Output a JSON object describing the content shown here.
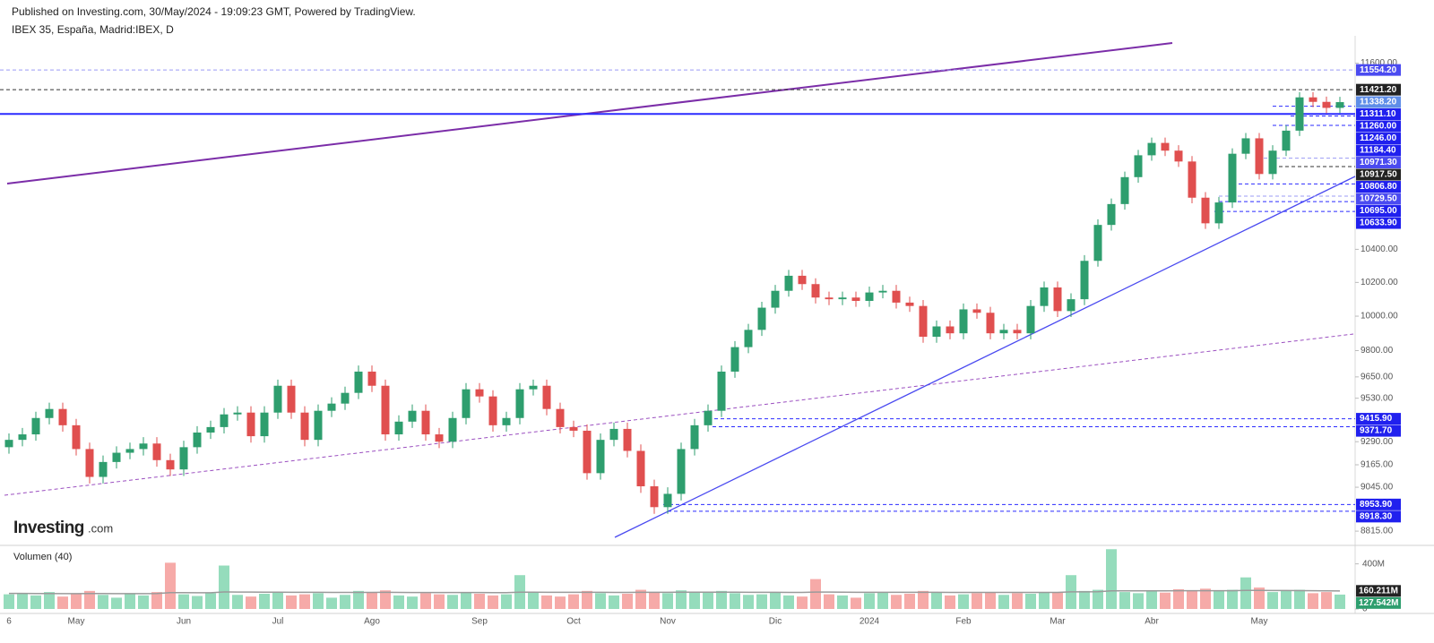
{
  "header": {
    "published": "Published on Investing.com, 30/May/2024 - 19:09:23 GMT, Powered by TradingView.",
    "symbol": "IBEX 35, España, Madrid:IBEX, D"
  },
  "logo": {
    "name": "Investing",
    "suffix": ".com"
  },
  "chart_data": {
    "type": "candlestick",
    "log_scale": true,
    "up_color": "#2e9e6e",
    "down_color": "#e04f4f",
    "volume_up_color": "#95dcbc",
    "volume_down_color": "#f6aaa8",
    "ma_color": "#9a9a9a",
    "categories": [
      "6",
      null,
      null,
      null,
      null,
      "May",
      null,
      null,
      null,
      null,
      null,
      null,
      null,
      "Jun",
      null,
      null,
      null,
      null,
      null,
      null,
      "Jul",
      null,
      null,
      null,
      null,
      null,
      null,
      "Ago",
      null,
      null,
      null,
      null,
      null,
      null,
      null,
      "Sep",
      null,
      null,
      null,
      null,
      null,
      null,
      "Oct",
      null,
      null,
      null,
      null,
      null,
      null,
      "Nov",
      null,
      null,
      null,
      null,
      null,
      null,
      null,
      "Dic",
      null,
      null,
      null,
      null,
      null,
      null,
      "2024",
      null,
      null,
      null,
      null,
      null,
      null,
      "Feb",
      null,
      null,
      null,
      null,
      null,
      null,
      "Mar",
      null,
      null,
      null,
      null,
      null,
      null,
      "Abr",
      null,
      null,
      null,
      null,
      null,
      null,
      null,
      "May",
      null,
      null,
      null,
      null,
      null,
      null
    ],
    "ohlc": [
      [
        9260,
        9335,
        9225,
        9300
      ],
      [
        9300,
        9365,
        9265,
        9330
      ],
      [
        9330,
        9455,
        9295,
        9420
      ],
      [
        9420,
        9505,
        9385,
        9470
      ],
      [
        9470,
        9505,
        9345,
        9380
      ],
      [
        9380,
        9415,
        9215,
        9250
      ],
      [
        9250,
        9285,
        9065,
        9100
      ],
      [
        9100,
        9215,
        9065,
        9180
      ],
      [
        9180,
        9265,
        9145,
        9230
      ],
      [
        9230,
        9285,
        9195,
        9250
      ],
      [
        9250,
        9315,
        9215,
        9280
      ],
      [
        9280,
        9315,
        9155,
        9190
      ],
      [
        9190,
        9225,
        9105,
        9140
      ],
      [
        9140,
        9295,
        9105,
        9260
      ],
      [
        9260,
        9375,
        9225,
        9340
      ],
      [
        9340,
        9405,
        9305,
        9370
      ],
      [
        9370,
        9475,
        9335,
        9440
      ],
      [
        9440,
        9485,
        9405,
        9450
      ],
      [
        9450,
        9485,
        9285,
        9320
      ],
      [
        9320,
        9485,
        9285,
        9450
      ],
      [
        9450,
        9635,
        9415,
        9600
      ],
      [
        9600,
        9635,
        9415,
        9450
      ],
      [
        9450,
        9485,
        9265,
        9300
      ],
      [
        9300,
        9495,
        9265,
        9460
      ],
      [
        9460,
        9535,
        9425,
        9500
      ],
      [
        9500,
        9595,
        9465,
        9560
      ],
      [
        9560,
        9715,
        9525,
        9680
      ],
      [
        9680,
        9715,
        9565,
        9600
      ],
      [
        9600,
        9635,
        9295,
        9330
      ],
      [
        9330,
        9435,
        9295,
        9400
      ],
      [
        9400,
        9495,
        9365,
        9460
      ],
      [
        9460,
        9495,
        9295,
        9330
      ],
      [
        9330,
        9365,
        9255,
        9290
      ],
      [
        9290,
        9455,
        9255,
        9420
      ],
      [
        9420,
        9615,
        9385,
        9580
      ],
      [
        9580,
        9615,
        9505,
        9540
      ],
      [
        9540,
        9575,
        9345,
        9380
      ],
      [
        9380,
        9455,
        9345,
        9420
      ],
      [
        9420,
        9615,
        9385,
        9580
      ],
      [
        9580,
        9635,
        9545,
        9600
      ],
      [
        9600,
        9635,
        9435,
        9470
      ],
      [
        9470,
        9505,
        9335,
        9370
      ],
      [
        9370,
        9405,
        9315,
        9350
      ],
      [
        9350,
        9385,
        9085,
        9120
      ],
      [
        9120,
        9335,
        9085,
        9300
      ],
      [
        9300,
        9395,
        9265,
        9360
      ],
      [
        9360,
        9395,
        9205,
        9240
      ],
      [
        9240,
        9275,
        9015,
        9050
      ],
      [
        9050,
        9085,
        8905,
        8940
      ],
      [
        8940,
        9045,
        8905,
        9010
      ],
      [
        9010,
        9285,
        8975,
        9250
      ],
      [
        9250,
        9415,
        9215,
        9380
      ],
      [
        9380,
        9495,
        9345,
        9460
      ],
      [
        9460,
        9715,
        9425,
        9680
      ],
      [
        9680,
        9855,
        9645,
        9820
      ],
      [
        9820,
        9955,
        9785,
        9920
      ],
      [
        9920,
        10085,
        9885,
        10050
      ],
      [
        10050,
        10185,
        10015,
        10150
      ],
      [
        10150,
        10275,
        10115,
        10240
      ],
      [
        10240,
        10275,
        10155,
        10190
      ],
      [
        10190,
        10225,
        10075,
        10110
      ],
      [
        10110,
        10145,
        10065,
        10100
      ],
      [
        10100,
        10145,
        10065,
        10110
      ],
      [
        10110,
        10145,
        10055,
        10090
      ],
      [
        10090,
        10175,
        10055,
        10140
      ],
      [
        10140,
        10185,
        10105,
        10150
      ],
      [
        10150,
        10185,
        10045,
        10080
      ],
      [
        10080,
        10115,
        10025,
        10060
      ],
      [
        10060,
        10095,
        9845,
        9880
      ],
      [
        9880,
        9975,
        9845,
        9940
      ],
      [
        9940,
        9975,
        9865,
        9900
      ],
      [
        9900,
        10075,
        9865,
        10040
      ],
      [
        10040,
        10075,
        9985,
        10020
      ],
      [
        10020,
        10055,
        9865,
        9900
      ],
      [
        9900,
        9955,
        9865,
        9920
      ],
      [
        9920,
        9955,
        9865,
        9900
      ],
      [
        9900,
        10095,
        9865,
        10060
      ],
      [
        10060,
        10205,
        10025,
        10170
      ],
      [
        10170,
        10205,
        9995,
        10030
      ],
      [
        10030,
        10135,
        9995,
        10100
      ],
      [
        10100,
        10365,
        10065,
        10330
      ],
      [
        10330,
        10585,
        10295,
        10550
      ],
      [
        10550,
        10715,
        10515,
        10680
      ],
      [
        10680,
        10885,
        10645,
        10850
      ],
      [
        10850,
        11025,
        10815,
        10990
      ],
      [
        10990,
        11105,
        10955,
        11070
      ],
      [
        11070,
        11105,
        10985,
        11020
      ],
      [
        11020,
        11055,
        10915,
        10950
      ],
      [
        10950,
        10985,
        10685,
        10720
      ],
      [
        10720,
        10755,
        10525,
        10560
      ],
      [
        10560,
        10725,
        10525,
        10690
      ],
      [
        10690,
        11035,
        10655,
        11000
      ],
      [
        11000,
        11135,
        10965,
        11100
      ],
      [
        11100,
        11135,
        10835,
        10870
      ],
      [
        10870,
        11055,
        10835,
        11020
      ],
      [
        11020,
        11185,
        10985,
        11150
      ],
      [
        11150,
        11405,
        11115,
        11370
      ],
      [
        11370,
        11405,
        11305,
        11340
      ],
      [
        11340,
        11375,
        11265,
        11300
      ],
      [
        11300,
        11373.2,
        11265,
        11338.2
      ]
    ],
    "volume": [
      130,
      140,
      120,
      150,
      110,
      135,
      160,
      125,
      100,
      140,
      120,
      150,
      410,
      130,
      115,
      140,
      385,
      125,
      110,
      135,
      150,
      120,
      130,
      140,
      100,
      125,
      160,
      150,
      165,
      120,
      110,
      140,
      130,
      125,
      150,
      135,
      120,
      130,
      300,
      145,
      120,
      110,
      130,
      160,
      140,
      120,
      135,
      170,
      150,
      140,
      165,
      150,
      145,
      160,
      140,
      125,
      130,
      150,
      120,
      110,
      265,
      130,
      120,
      100,
      140,
      150,
      125,
      135,
      160,
      145,
      120,
      130,
      140,
      150,
      125,
      140,
      135,
      150,
      145,
      300,
      160,
      170,
      530,
      150,
      140,
      160,
      145,
      175,
      165,
      180,
      160,
      170,
      280,
      190,
      150,
      165,
      170,
      140,
      150,
      127.542
    ],
    "volume_ma": [
      138,
      138,
      137,
      137,
      136,
      136,
      137,
      137,
      136,
      136,
      136,
      137,
      145,
      145,
      144,
      144,
      151,
      150,
      150,
      149,
      149,
      148,
      148,
      148,
      147,
      147,
      147,
      147,
      148,
      147,
      146,
      146,
      146,
      146,
      146,
      146,
      145,
      145,
      149,
      149,
      148,
      148,
      148,
      148,
      148,
      147,
      147,
      148,
      148,
      148,
      149,
      149,
      149,
      149,
      149,
      148,
      148,
      148,
      147,
      147,
      150,
      150,
      149,
      148,
      148,
      148,
      148,
      148,
      148,
      148,
      147,
      147,
      147,
      147,
      147,
      147,
      147,
      147,
      147,
      152,
      152,
      153,
      161,
      161,
      161,
      161,
      161,
      162,
      162,
      162,
      162,
      162,
      165,
      165,
      164,
      164,
      163,
      162,
      161,
      160.211
    ],
    "price_label": "11338.20",
    "volume_ma_label": "160.211M",
    "volume_label": "127.542M",
    "volume_title": "Volumen (40)",
    "ylim": [
      8760,
      11788
    ],
    "yticks": [
      {
        "value": 8815,
        "label": "8815.00"
      },
      {
        "value": 9045,
        "label": "9045.00"
      },
      {
        "value": 9165,
        "label": "9165.00"
      },
      {
        "value": 9290,
        "label": "9290.00"
      },
      {
        "value": 9530,
        "label": "9530.00"
      },
      {
        "value": 9650,
        "label": "9650.00"
      },
      {
        "value": 9800,
        "label": "9800.00"
      },
      {
        "value": 10000,
        "label": "10000.00"
      },
      {
        "value": 10200,
        "label": "10200.00"
      },
      {
        "value": 10400,
        "label": "10400.00"
      },
      {
        "value": 11600,
        "label": "11600.00"
      }
    ],
    "vlim": [
      0,
      540
    ],
    "vticks": [
      {
        "value": 400,
        "label": "400M"
      },
      0
    ],
    "levels": [
      {
        "value": 11554.2,
        "label": "11554.20",
        "color": "#9b9bf5",
        "dash": true
      },
      {
        "value": 11421.2,
        "label": "11421.20",
        "color": "#333333",
        "dash": true
      },
      {
        "value": 11311.1,
        "label": "11311.10",
        "color": "#2b2bff",
        "dash": true
      },
      {
        "value": 11260,
        "label": "11260.00",
        "color": "#2b2bff",
        "dash": false
      },
      {
        "value": 11246,
        "label": "11246.00",
        "color": "#2b2bff",
        "dash": true
      },
      {
        "value": 11184.4,
        "label": "11184.40",
        "color": "#2b2bff",
        "dash": true
      },
      {
        "value": 10971.3,
        "label": "10971.30",
        "color": "#9b9bf5",
        "dash": true
      },
      {
        "value": 10917.5,
        "label": "10917.50",
        "color": "#333333",
        "dash": true
      },
      {
        "value": 10806.8,
        "label": "10806.80",
        "color": "#2b2bff",
        "dash": true
      },
      {
        "value": 10729.5,
        "label": "10729.50",
        "color": "#9b9bf5",
        "dash": true
      },
      {
        "value": 10695,
        "label": "10695.00",
        "color": "#2b2bff",
        "dash": true
      },
      {
        "value": 10633.9,
        "label": "10633.90",
        "color": "#2b2bff",
        "dash": true
      },
      {
        "value": 9415.9,
        "label": "9415.90",
        "color": "#2b2bff",
        "dash": true
      },
      {
        "value": 9371.7,
        "label": "9371.70",
        "color": "#2b2bff",
        "dash": true
      },
      {
        "value": 8953.9,
        "label": "8953.90",
        "color": "#2b2bff",
        "dash": true
      },
      {
        "value": 8918.3,
        "label": "8918.30",
        "color": "#2b2bff",
        "dash": true
      }
    ]
  }
}
